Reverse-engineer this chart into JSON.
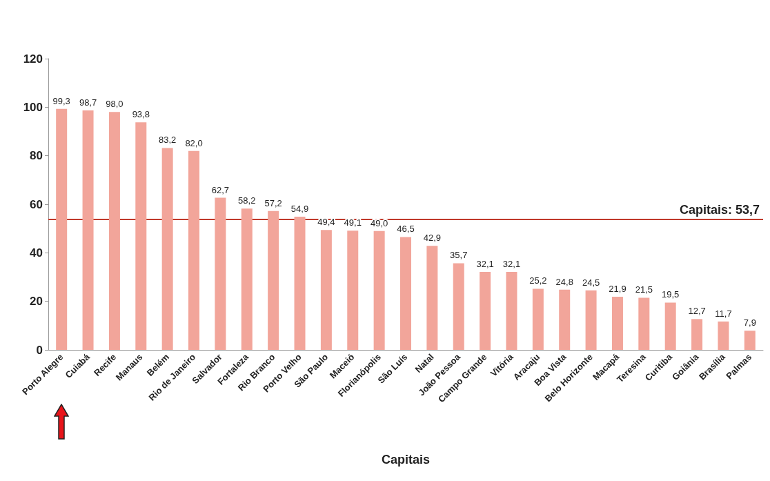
{
  "chart_data": {
    "type": "bar",
    "xlabel": "Capitais",
    "categories": [
      "Porto Alegre",
      "Cuiabá",
      "Recife",
      "Manaus",
      "Belém",
      "Rio de Janeiro",
      "Salvador",
      "Fortaleza",
      "Rio Branco",
      "Porto Velho",
      "São Paulo",
      "Maceió",
      "Florianópolis",
      "São Luís",
      "Natal",
      "João Pessoa",
      "Campo Grande",
      "Vitória",
      "Aracaju",
      "Boa Vista",
      "Belo Horizonte",
      "Macapá",
      "Teresina",
      "Curitiba",
      "Goiânia",
      "Brasília",
      "Palmas"
    ],
    "values": [
      99.3,
      98.7,
      98.0,
      93.8,
      83.2,
      82.0,
      62.7,
      58.2,
      57.2,
      54.9,
      49.4,
      49.1,
      49.0,
      46.5,
      42.9,
      35.7,
      32.1,
      32.1,
      25.2,
      24.8,
      24.5,
      21.9,
      21.5,
      19.5,
      12.7,
      11.7,
      7.9
    ],
    "value_labels": [
      "99,3",
      "98,7",
      "98,0",
      "93,8",
      "83,2",
      "82,0",
      "62,7",
      "58,2",
      "57,2",
      "54,9",
      "49,4",
      "49,1",
      "49,0",
      "46,5",
      "42,9",
      "35,7",
      "32,1",
      "32,1",
      "25,2",
      "24,8",
      "24,5",
      "21,9",
      "21,5",
      "19,5",
      "12,7",
      "11,7",
      "7,9"
    ],
    "color": "#f2a59a",
    "ylim": [
      0,
      120
    ],
    "yticks": [
      0,
      20,
      40,
      60,
      80,
      100,
      120
    ],
    "ref_lines": [
      {
        "axis": "y",
        "value": 53.7,
        "label": "Capitais: 53,7",
        "color": "#c0392b"
      }
    ],
    "grid": false
  }
}
